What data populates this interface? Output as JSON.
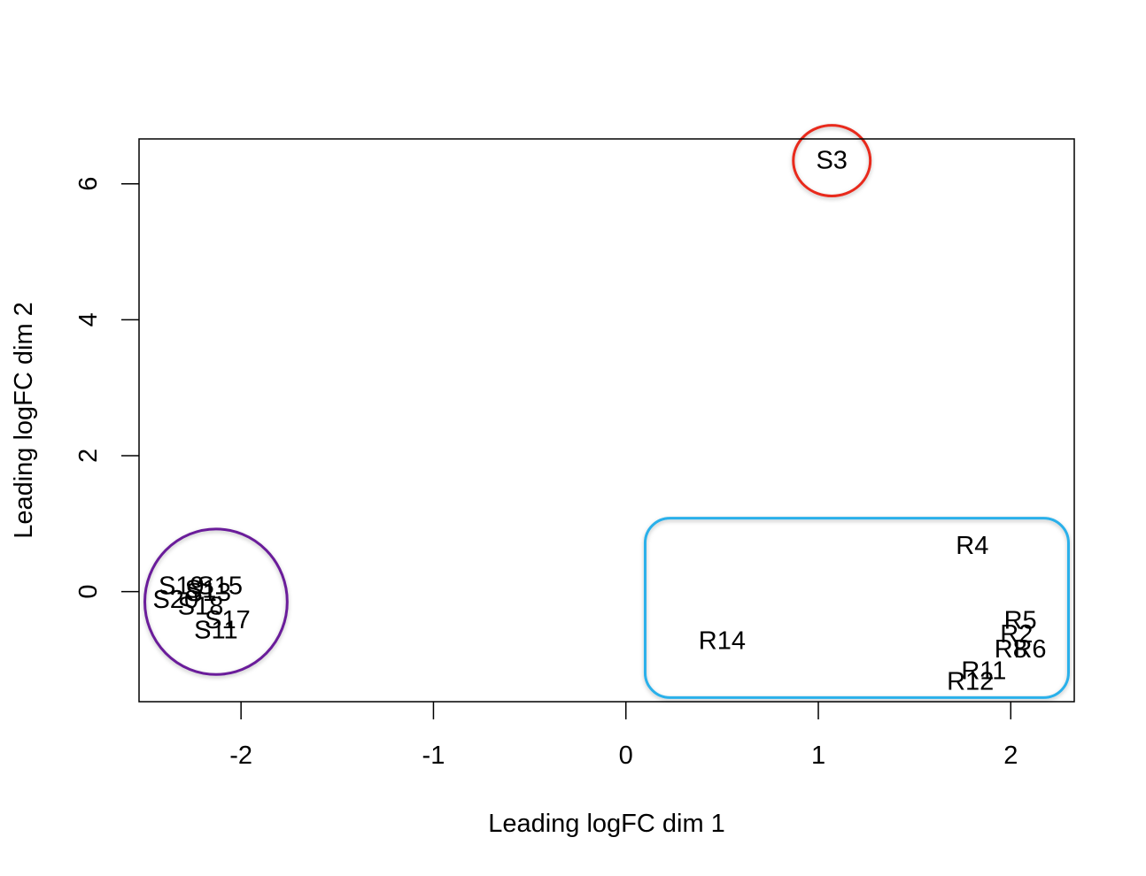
{
  "chart_data": {
    "type": "scatter",
    "title": "",
    "xlabel": "Leading logFC dim 1",
    "ylabel": "Leading logFC dim 2",
    "xlim": [
      -2.53,
      2.33
    ],
    "ylim": [
      -1.62,
      6.66
    ],
    "xticks": [
      -2,
      -1,
      0,
      1,
      2
    ],
    "yticks": [
      0,
      2,
      4,
      6
    ],
    "grid": false,
    "marker": "text-label",
    "points": [
      {
        "label": "S3",
        "x": 1.07,
        "y": 6.34
      },
      {
        "label": "S19",
        "x": -2.31,
        "y": 0.08
      },
      {
        "label": "S15",
        "x": -2.11,
        "y": 0.08
      },
      {
        "label": "S1",
        "x": -2.21,
        "y": 0.03
      },
      {
        "label": "S13",
        "x": -2.17,
        "y": -0.02
      },
      {
        "label": "S20",
        "x": -2.34,
        "y": -0.12
      },
      {
        "label": "S18",
        "x": -2.21,
        "y": -0.22
      },
      {
        "label": "S17",
        "x": -2.07,
        "y": -0.42
      },
      {
        "label": "S11",
        "x": -2.13,
        "y": -0.57
      },
      {
        "label": "R4",
        "x": 1.8,
        "y": 0.67
      },
      {
        "label": "R5",
        "x": 2.05,
        "y": -0.43
      },
      {
        "label": "R2",
        "x": 2.03,
        "y": -0.63
      },
      {
        "label": "R8",
        "x": 2.0,
        "y": -0.85
      },
      {
        "label": "R6",
        "x": 2.1,
        "y": -0.85
      },
      {
        "label": "R14",
        "x": 0.5,
        "y": -0.73
      },
      {
        "label": "R11",
        "x": 1.86,
        "y": -1.17
      },
      {
        "label": "R12",
        "x": 1.79,
        "y": -1.33
      }
    ],
    "annotations": [
      {
        "shape": "circle",
        "color": "#e8291c",
        "cx": 1.07,
        "cy": 6.34,
        "rx": 0.2,
        "ry": 0.52
      },
      {
        "shape": "circle",
        "color": "#6a1f9a",
        "cx": -2.13,
        "cy": -0.15,
        "rx": 0.37,
        "ry": 1.07
      },
      {
        "shape": "rounded-rect",
        "color": "#29b0ea",
        "x0": 0.1,
        "x1": 2.3,
        "y0": -1.56,
        "y1": 1.08
      }
    ]
  }
}
